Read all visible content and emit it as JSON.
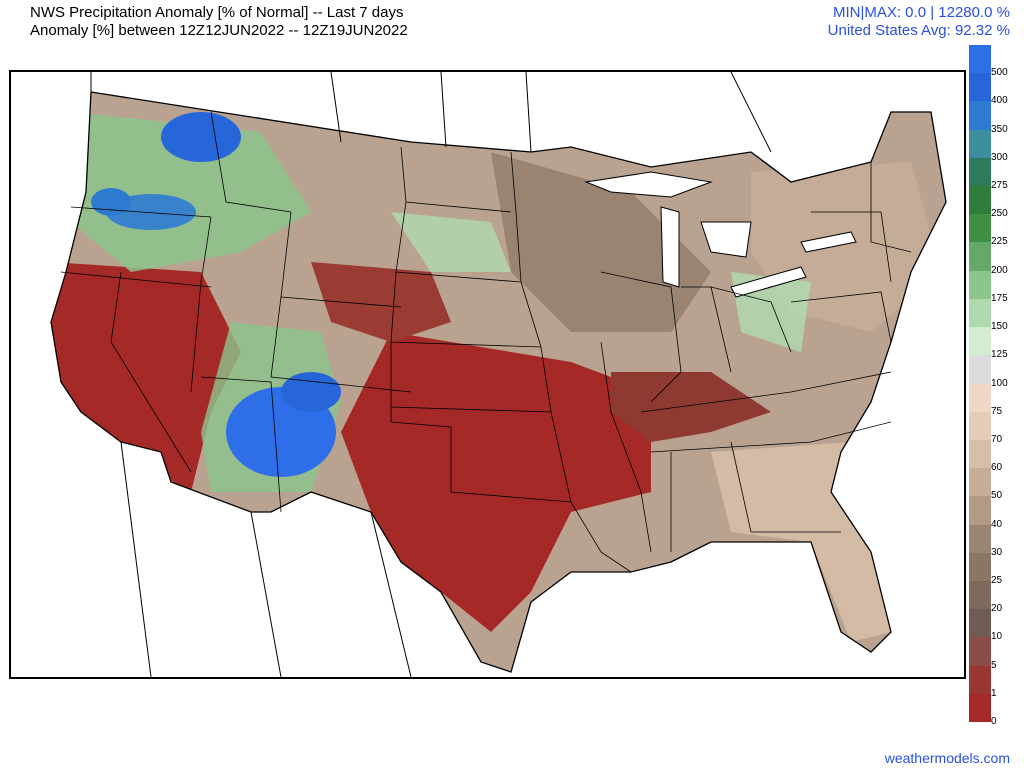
{
  "header": {
    "title_line1": "NWS Precipitation Anomaly [% of Normal] -- Last 7 days",
    "title_line2": "Anomaly [%] between 12Z12JUN2022 -- 12Z19JUN2022",
    "stats_line1": "MIN|MAX: 0.0 | 12280.0 %",
    "stats_line2": "United States Avg: 92.32 %"
  },
  "legend": {
    "items": [
      {
        "label": "500",
        "color": "#2e6ee8"
      },
      {
        "label": "400",
        "color": "#2766d8"
      },
      {
        "label": "350",
        "color": "#2d7bd0"
      },
      {
        "label": "300",
        "color": "#3c8e9e"
      },
      {
        "label": "275",
        "color": "#2f7a5c"
      },
      {
        "label": "250",
        "color": "#2f7d3a"
      },
      {
        "label": "225",
        "color": "#3f8f45"
      },
      {
        "label": "200",
        "color": "#64a968"
      },
      {
        "label": "175",
        "color": "#8cc48d"
      },
      {
        "label": "150",
        "color": "#b0d9b0"
      },
      {
        "label": "125",
        "color": "#d4ecd2"
      },
      {
        "label": "100",
        "color": "#dcdcdc"
      },
      {
        "label": "75",
        "color": "#f1d8c6"
      },
      {
        "label": "70",
        "color": "#e4ccb8"
      },
      {
        "label": "60",
        "color": "#d6bea9"
      },
      {
        "label": "50",
        "color": "#c7ad98"
      },
      {
        "label": "40",
        "color": "#b29a85"
      },
      {
        "label": "30",
        "color": "#9c8572"
      },
      {
        "label": "25",
        "color": "#8c7564"
      },
      {
        "label": "20",
        "color": "#7e6a5c"
      },
      {
        "label": "10",
        "color": "#6e5c52"
      },
      {
        "label": "5",
        "color": "#8a4d47"
      },
      {
        "label": "1",
        "color": "#993632"
      },
      {
        "label": "0",
        "color": "#a52a27"
      }
    ]
  },
  "footer": {
    "credit": "weathermodels.com"
  }
}
